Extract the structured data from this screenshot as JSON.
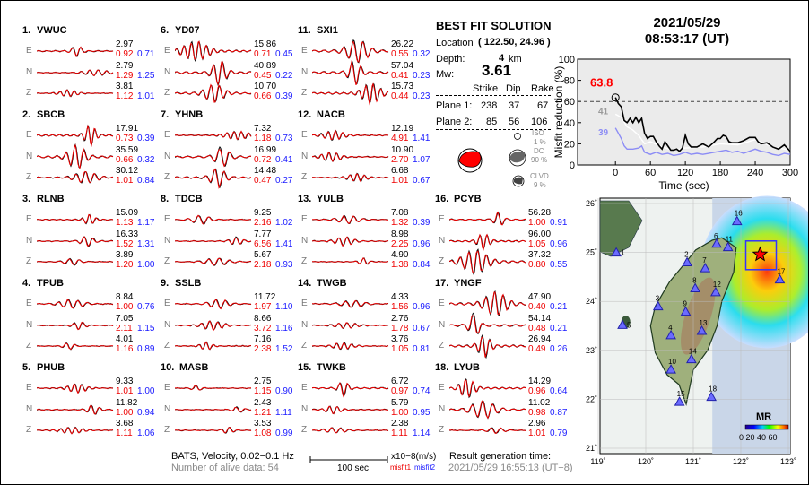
{
  "stations": [
    {
      "num": "1.",
      "name": "VWUC",
      "comps": [
        {
          "c": "E",
          "amp": "2.97",
          "m1": "0.92",
          "m2": "0.71"
        },
        {
          "c": "N",
          "amp": "2.79",
          "m1": "1.29",
          "m2": "1.25"
        },
        {
          "c": "Z",
          "amp": "3.81",
          "m1": "1.12",
          "m2": "1.01"
        }
      ]
    },
    {
      "num": "2.",
      "name": "SBCB",
      "comps": [
        {
          "c": "E",
          "amp": "17.91",
          "m1": "0.73",
          "m2": "0.39"
        },
        {
          "c": "N",
          "amp": "35.59",
          "m1": "0.66",
          "m2": "0.32"
        },
        {
          "c": "Z",
          "amp": "30.12",
          "m1": "1.01",
          "m2": "0.84"
        }
      ]
    },
    {
      "num": "3.",
      "name": "RLNB",
      "comps": [
        {
          "c": "E",
          "amp": "15.09",
          "m1": "1.13",
          "m2": "1.17"
        },
        {
          "c": "N",
          "amp": "16.33",
          "m1": "1.52",
          "m2": "1.31"
        },
        {
          "c": "Z",
          "amp": "3.89",
          "m1": "1.20",
          "m2": "1.00"
        }
      ]
    },
    {
      "num": "4.",
      "name": "TPUB",
      "comps": [
        {
          "c": "E",
          "amp": "8.84",
          "m1": "1.00",
          "m2": "0.76"
        },
        {
          "c": "N",
          "amp": "7.05",
          "m1": "2.11",
          "m2": "1.15"
        },
        {
          "c": "Z",
          "amp": "4.01",
          "m1": "1.16",
          "m2": "0.89"
        }
      ]
    },
    {
      "num": "5.",
      "name": "PHUB",
      "comps": [
        {
          "c": "E",
          "amp": "9.33",
          "m1": "1.01",
          "m2": "1.00"
        },
        {
          "c": "N",
          "amp": "11.82",
          "m1": "1.00",
          "m2": "0.94"
        },
        {
          "c": "Z",
          "amp": "3.68",
          "m1": "1.11",
          "m2": "1.06"
        }
      ]
    },
    {
      "num": "6.",
      "name": "YD07",
      "comps": [
        {
          "c": "E",
          "amp": "15.86",
          "m1": "0.71",
          "m2": "0.45"
        },
        {
          "c": "N",
          "amp": "40.89",
          "m1": "0.45",
          "m2": "0.22"
        },
        {
          "c": "Z",
          "amp": "10.70",
          "m1": "0.66",
          "m2": "0.39"
        }
      ]
    },
    {
      "num": "7.",
      "name": "YHNB",
      "comps": [
        {
          "c": "E",
          "amp": "7.32",
          "m1": "1.18",
          "m2": "0.73"
        },
        {
          "c": "N",
          "amp": "16.99",
          "m1": "0.72",
          "m2": "0.41"
        },
        {
          "c": "Z",
          "amp": "14.48",
          "m1": "0.47",
          "m2": "0.27"
        }
      ]
    },
    {
      "num": "8.",
      "name": "TDCB",
      "comps": [
        {
          "c": "E",
          "amp": "9.25",
          "m1": "2.16",
          "m2": "1.02"
        },
        {
          "c": "N",
          "amp": "7.77",
          "m1": "6.56",
          "m2": "1.41"
        },
        {
          "c": "Z",
          "amp": "5.67",
          "m1": "2.18",
          "m2": "0.93"
        }
      ]
    },
    {
      "num": "9.",
      "name": "SSLB",
      "comps": [
        {
          "c": "E",
          "amp": "11.72",
          "m1": "1.97",
          "m2": "1.10"
        },
        {
          "c": "N",
          "amp": "8.66",
          "m1": "3.72",
          "m2": "1.16"
        },
        {
          "c": "Z",
          "amp": "7.16",
          "m1": "2.38",
          "m2": "1.52"
        }
      ]
    },
    {
      "num": "10.",
      "name": "MASB",
      "comps": [
        {
          "c": "E",
          "amp": "2.75",
          "m1": "1.15",
          "m2": "0.90"
        },
        {
          "c": "N",
          "amp": "2.43",
          "m1": "1.21",
          "m2": "1.11"
        },
        {
          "c": "Z",
          "amp": "3.53",
          "m1": "1.08",
          "m2": "0.99"
        }
      ]
    },
    {
      "num": "11.",
      "name": "SXI1",
      "comps": [
        {
          "c": "E",
          "amp": "26.22",
          "m1": "0.55",
          "m2": "0.32"
        },
        {
          "c": "N",
          "amp": "57.04",
          "m1": "0.41",
          "m2": "0.23"
        },
        {
          "c": "Z",
          "amp": "15.73",
          "m1": "0.44",
          "m2": "0.23"
        }
      ]
    },
    {
      "num": "12.",
      "name": "NACB",
      "comps": [
        {
          "c": "E",
          "amp": "12.19",
          "m1": "4.91",
          "m2": "1.41"
        },
        {
          "c": "N",
          "amp": "10.90",
          "m1": "2.70",
          "m2": "1.07"
        },
        {
          "c": "Z",
          "amp": "6.68",
          "m1": "1.01",
          "m2": "0.67"
        }
      ]
    },
    {
      "num": "13.",
      "name": "YULB",
      "comps": [
        {
          "c": "E",
          "amp": "7.08",
          "m1": "1.32",
          "m2": "0.39"
        },
        {
          "c": "N",
          "amp": "8.98",
          "m1": "2.25",
          "m2": "0.96"
        },
        {
          "c": "Z",
          "amp": "4.90",
          "m1": "1.38",
          "m2": "0.84"
        }
      ]
    },
    {
      "num": "14.",
      "name": "TWGB",
      "comps": [
        {
          "c": "E",
          "amp": "4.33",
          "m1": "1.56",
          "m2": "0.96"
        },
        {
          "c": "N",
          "amp": "2.76",
          "m1": "1.78",
          "m2": "0.67"
        },
        {
          "c": "Z",
          "amp": "3.76",
          "m1": "1.05",
          "m2": "0.81"
        }
      ]
    },
    {
      "num": "15.",
      "name": "TWKB",
      "comps": [
        {
          "c": "E",
          "amp": "6.72",
          "m1": "0.97",
          "m2": "0.74"
        },
        {
          "c": "N",
          "amp": "5.79",
          "m1": "1.00",
          "m2": "0.95"
        },
        {
          "c": "Z",
          "amp": "2.38",
          "m1": "1.11",
          "m2": "1.14"
        }
      ]
    },
    {
      "num": "16.",
      "name": "PCYB",
      "comps": [
        {
          "c": "E",
          "amp": "56.28",
          "m1": "1.00",
          "m2": "0.91"
        },
        {
          "c": "N",
          "amp": "96.00",
          "m1": "1.05",
          "m2": "0.96"
        },
        {
          "c": "Z",
          "amp": "37.32",
          "m1": "0.80",
          "m2": "0.55"
        }
      ]
    },
    {
      "num": "17.",
      "name": "YNGF",
      "comps": [
        {
          "c": "E",
          "amp": "47.90",
          "m1": "0.40",
          "m2": "0.21"
        },
        {
          "c": "N",
          "amp": "54.14",
          "m1": "0.48",
          "m2": "0.21"
        },
        {
          "c": "Z",
          "amp": "26.94",
          "m1": "0.49",
          "m2": "0.26"
        }
      ]
    },
    {
      "num": "18.",
      "name": "LYUB",
      "comps": [
        {
          "c": "E",
          "amp": "14.29",
          "m1": "0.96",
          "m2": "0.64"
        },
        {
          "c": "N",
          "amp": "11.02",
          "m1": "0.98",
          "m2": "0.87"
        },
        {
          "c": "Z",
          "amp": "2.96",
          "m1": "1.01",
          "m2": "0.79"
        }
      ]
    }
  ],
  "footer": {
    "network": "BATS, Velocity, 0.02−0.1 Hz",
    "alive": "Number of alive data: 54",
    "scale_label": "100 sec",
    "units": "x10−8(m/s)",
    "misfit1": "misfit1",
    "misfit2": "misfit2",
    "gen_label": "Result generation time:",
    "gen_time": "2021/05/29 16:55:13 (UT+8)"
  },
  "solution": {
    "title": "BEST FIT SOLUTION",
    "location_label": "Location",
    "location_value": "( 122.50,  24.96 )",
    "depth_label": "Depth:",
    "depth_value": "4",
    "depth_unit": "km",
    "mw_label": "Mw:",
    "mw_value": "3.61",
    "headers": [
      "Strike",
      "Dip",
      "Rake"
    ],
    "planes": [
      {
        "label": "Plane 1:",
        "strike": "238",
        "dip": "37",
        "rake": "67"
      },
      {
        "label": "Plane 2:",
        "strike": "85",
        "dip": "56",
        "rake": "106"
      }
    ],
    "iso_label": "ISO",
    "iso_value": "1 %",
    "dc_label": "DC",
    "dc_value": "90 %",
    "clvd_label": "CLVD",
    "clvd_value": "9 %",
    "colors": {
      "beachball": "#ff0000",
      "dc": "#666666"
    }
  },
  "event": {
    "date": "2021/05/29",
    "time": "08:53:17  (UT)"
  },
  "chart_data": {
    "type": "line",
    "xlabel": "Time (sec)",
    "ylabel": "Misfit reduction (%)",
    "xlim": [
      -65,
      300
    ],
    "ylim": [
      0,
      100
    ],
    "xticks": [
      "0",
      "60",
      "120",
      "180",
      "240",
      "300"
    ],
    "yticks": [
      "0",
      "20",
      "40",
      "60",
      "80",
      "100"
    ],
    "threshold": 60,
    "best_value": "63.8",
    "label_gray": "41",
    "label_blue": "39",
    "series": [
      {
        "color": "#000000",
        "x": [
          0,
          5,
          10,
          15,
          20,
          25,
          30,
          35,
          40,
          45,
          50,
          55,
          60,
          65,
          70,
          75,
          80,
          85,
          90,
          95,
          100,
          105,
          110,
          115,
          120,
          125,
          130,
          140,
          150,
          160,
          170,
          175,
          180,
          185,
          190,
          195,
          200,
          210,
          220,
          230,
          240,
          245,
          250,
          260,
          270,
          280,
          290,
          300
        ],
        "y": [
          63.8,
          58,
          55,
          42,
          40,
          44,
          40,
          45,
          40,
          44,
          30,
          25,
          27,
          27,
          22,
          18,
          15,
          22,
          18,
          14,
          14,
          15,
          13,
          16,
          28,
          20,
          17,
          17,
          20,
          17,
          22,
          25,
          25,
          28,
          27,
          22,
          21,
          21,
          23,
          26,
          26,
          22,
          20,
          21,
          17,
          15,
          19,
          13
        ]
      },
      {
        "color": "#ffffff",
        "x": [
          0,
          10,
          20,
          30,
          40,
          50,
          60,
          80,
          100,
          120,
          150,
          180,
          210,
          240,
          270,
          300
        ],
        "y": [
          48,
          45,
          36,
          33,
          28,
          20,
          22,
          17,
          14,
          16,
          17,
          20,
          19,
          24,
          17,
          14
        ]
      },
      {
        "color": "#8c8cf5",
        "x": [
          0,
          5,
          10,
          15,
          20,
          30,
          40,
          45,
          50,
          60,
          70,
          80,
          90,
          100,
          110,
          120,
          130,
          140,
          150,
          160,
          170,
          180,
          190,
          200,
          210,
          220,
          230,
          240,
          250,
          260,
          270,
          280,
          290,
          300
        ],
        "y": [
          35,
          30,
          25,
          18,
          15,
          15,
          16,
          18,
          12,
          10,
          12,
          10,
          11,
          9,
          10,
          12,
          10,
          11,
          10,
          11,
          12,
          13,
          14,
          12,
          13,
          11,
          13,
          15,
          13,
          12,
          10,
          9,
          11,
          10
        ]
      }
    ],
    "grid": false,
    "background": "#ebebeb"
  },
  "map": {
    "lon_ticks": [
      "119˚",
      "120˚",
      "121˚",
      "122˚",
      "123˚"
    ],
    "lat_ticks": [
      "26˚",
      "25˚",
      "24˚",
      "23˚",
      "22˚",
      "21˚"
    ],
    "epicenter": {
      "lon": 122.5,
      "lat": 24.96
    },
    "stations": [
      {
        "id": "1",
        "lon": 119.38,
        "lat": 25.0
      },
      {
        "id": "2",
        "lon": 120.87,
        "lat": 24.8
      },
      {
        "id": "3",
        "lon": 120.26,
        "lat": 23.9
      },
      {
        "id": "4",
        "lon": 120.53,
        "lat": 23.31
      },
      {
        "id": "5",
        "lon": 119.51,
        "lat": 23.52
      },
      {
        "id": "6",
        "lon": 121.49,
        "lat": 25.18
      },
      {
        "id": "7",
        "lon": 121.25,
        "lat": 24.68
      },
      {
        "id": "8",
        "lon": 121.04,
        "lat": 24.27
      },
      {
        "id": "9",
        "lon": 120.84,
        "lat": 23.79
      },
      {
        "id": "10",
        "lon": 120.53,
        "lat": 22.61
      },
      {
        "id": "11",
        "lon": 121.73,
        "lat": 25.11
      },
      {
        "id": "12",
        "lon": 121.47,
        "lat": 24.19
      },
      {
        "id": "13",
        "lon": 121.18,
        "lat": 23.4
      },
      {
        "id": "14",
        "lon": 120.96,
        "lat": 22.82
      },
      {
        "id": "15",
        "lon": 120.71,
        "lat": 21.95
      },
      {
        "id": "16",
        "lon": 121.92,
        "lat": 25.64
      },
      {
        "id": "17",
        "lon": 122.82,
        "lat": 24.45
      },
      {
        "id": "18",
        "lon": 121.38,
        "lat": 22.05
      }
    ],
    "legend_title": "MR",
    "legend_ticks": "0 20 40 60",
    "colors": {
      "station": "#6b6bff",
      "star": "#ff0000",
      "box": "#3333ff"
    }
  }
}
